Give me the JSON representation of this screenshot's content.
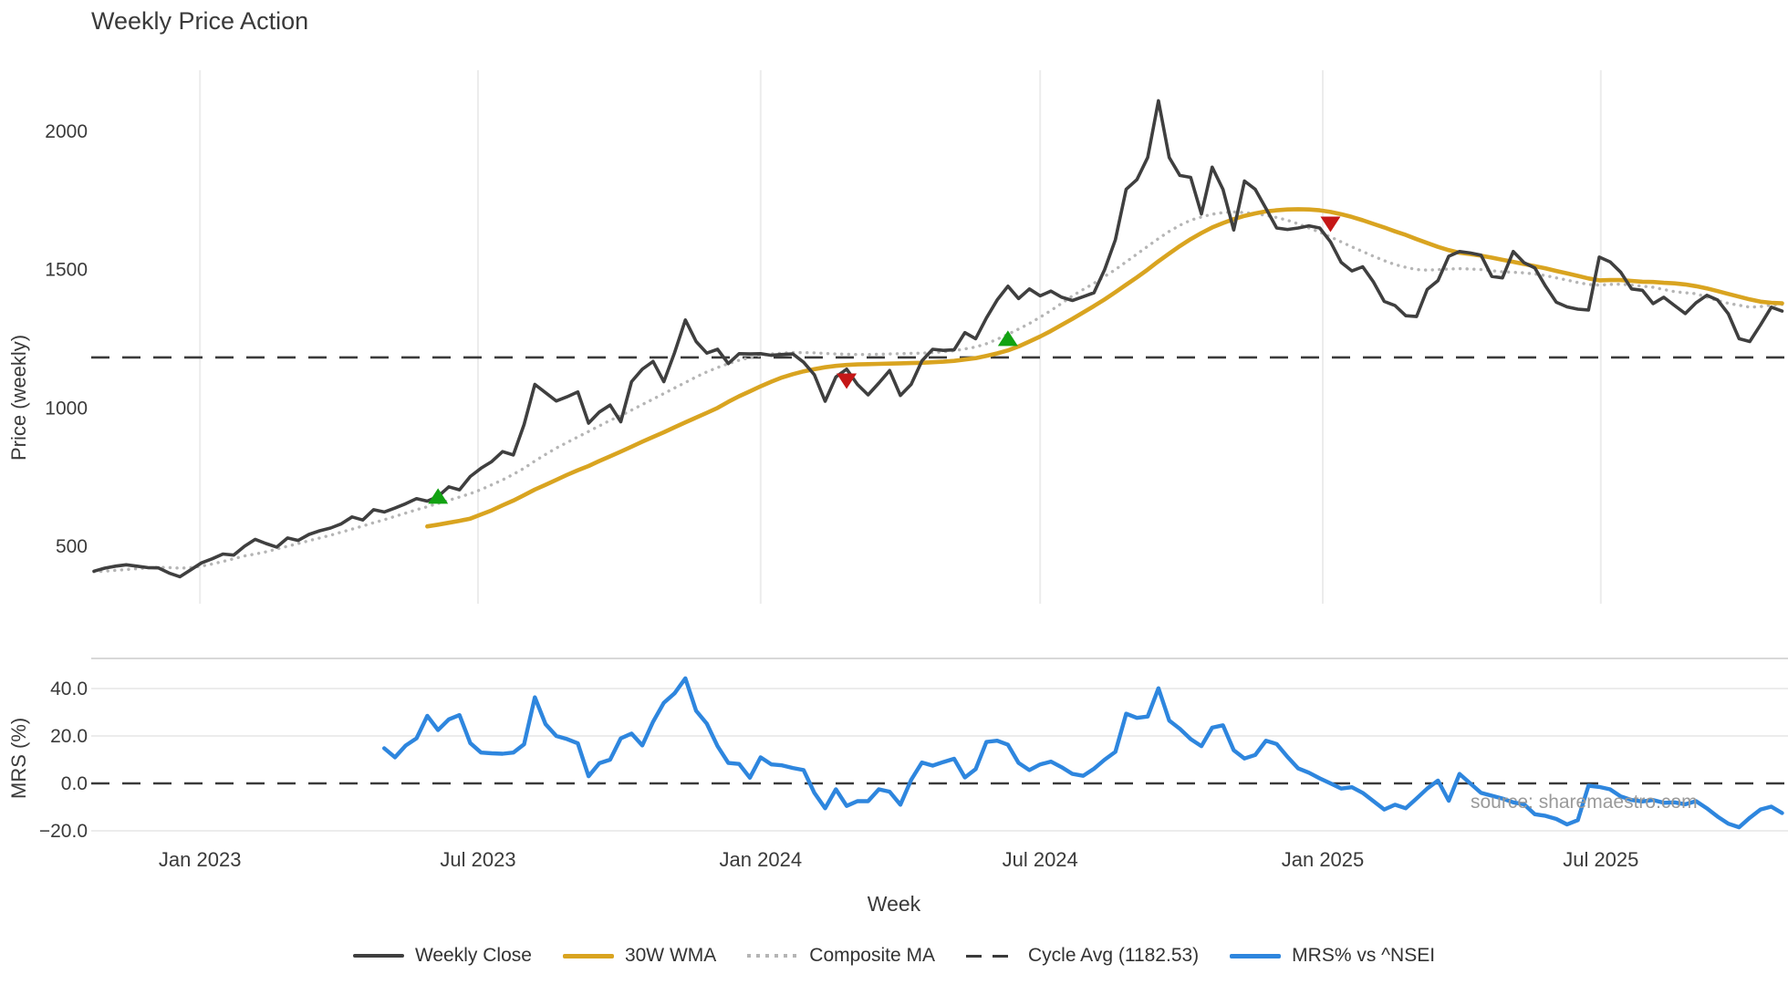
{
  "chart_data": {
    "type": "line",
    "title": "Weekly Price Action",
    "xlabel": "Week",
    "ylabel_price": "Price (weekly)",
    "ylabel_mrs": "MRS (%)",
    "watermark": "source: sharemaestro.com",
    "start_date": "2022-10-24",
    "interval": "weekly",
    "price_axis": {
      "ticks": [
        500,
        1000,
        1500,
        2000
      ],
      "tick_labels": [
        "500",
        "1000",
        "1500",
        "2000"
      ],
      "ylim": [
        290,
        2215
      ],
      "grid": "vertical-only"
    },
    "mrs_axis": {
      "ticks": [
        -20,
        0,
        20,
        40
      ],
      "tick_labels": [
        "−20.0",
        "0.0",
        "20.0",
        "40.0"
      ],
      "ylim": [
        -27.5,
        52.5
      ],
      "grid": "horizontal-only"
    },
    "x_ticks": [
      {
        "date": "2023-01-01",
        "label": "Jan 2023"
      },
      {
        "date": "2023-07-01",
        "label": "Jul 2023"
      },
      {
        "date": "2024-01-01",
        "label": "Jan 2024"
      },
      {
        "date": "2024-07-01",
        "label": "Jul 2024"
      },
      {
        "date": "2025-01-01",
        "label": "Jan 2025"
      },
      {
        "date": "2025-07-01",
        "label": "Jul 2025"
      }
    ],
    "cycle_avg": 1182.53,
    "series": [
      {
        "name": "Weekly Close",
        "axis": "price",
        "start_index": 0,
        "values": [
          410,
          421,
          428,
          433,
          428,
          423,
          422,
          403,
          390,
          415,
          440,
          455,
          472,
          468,
          500,
          525,
          510,
          497,
          530,
          521,
          543,
          556,
          566,
          581,
          606,
          595,
          632,
          624,
          638,
          654,
          672,
          663,
          680,
          715,
          704,
          752,
          782,
          806,
          842,
          830,
          940,
          1085,
          1055,
          1025,
          1040,
          1058,
          945,
          985,
          1010,
          950,
          1095,
          1140,
          1168,
          1095,
          1200,
          1318,
          1240,
          1198,
          1212,
          1160,
          1196,
          1195,
          1196,
          1190,
          1193,
          1195,
          1165,
          1120,
          1024,
          1112,
          1140,
          1085,
          1047,
          1090,
          1135,
          1045,
          1085,
          1170,
          1212,
          1208,
          1210,
          1272,
          1250,
          1325,
          1390,
          1440,
          1395,
          1430,
          1405,
          1422,
          1400,
          1388,
          1402,
          1416,
          1500,
          1608,
          1790,
          1825,
          1905,
          2110,
          1905,
          1840,
          1833,
          1701,
          1870,
          1790,
          1643,
          1820,
          1790,
          1721,
          1650,
          1645,
          1650,
          1658,
          1650,
          1600,
          1526,
          1495,
          1510,
          1455,
          1385,
          1370,
          1333,
          1330,
          1428,
          1460,
          1548,
          1565,
          1560,
          1552,
          1475,
          1470,
          1565,
          1525,
          1506,
          1440,
          1382,
          1365,
          1357,
          1354,
          1545,
          1528,
          1490,
          1430,
          1425,
          1377,
          1400,
          1370,
          1341,
          1380,
          1407,
          1390,
          1340,
          1250,
          1240,
          1300,
          1364,
          1350
        ]
      },
      {
        "name": "30W WMA",
        "axis": "price",
        "start_index": 31,
        "values": [
          572,
          578,
          585,
          592,
          600,
          615,
          630,
          648,
          665,
          685,
          705,
          722,
          740,
          758,
          775,
          790,
          808,
          825,
          842,
          860,
          878,
          895,
          912,
          930,
          948,
          965,
          982,
          1000,
          1022,
          1042,
          1060,
          1078,
          1095,
          1110,
          1122,
          1132,
          1140,
          1147,
          1152,
          1155,
          1157,
          1158,
          1159,
          1160,
          1161,
          1162,
          1163,
          1165,
          1167,
          1170,
          1175,
          1180,
          1188,
          1197,
          1208,
          1222,
          1240,
          1258,
          1278,
          1300,
          1322,
          1345,
          1368,
          1392,
          1418,
          1445,
          1472,
          1500,
          1530,
          1558,
          1585,
          1610,
          1632,
          1652,
          1668,
          1682,
          1694,
          1703,
          1710,
          1714,
          1717,
          1718,
          1717,
          1714,
          1708,
          1700,
          1690,
          1678,
          1665,
          1652,
          1638,
          1625,
          1610,
          1596,
          1582,
          1570,
          1561,
          1556,
          1550,
          1543,
          1535,
          1528,
          1520,
          1512,
          1504,
          1495,
          1486,
          1477,
          1468,
          1461,
          1462,
          1462,
          1459,
          1456,
          1455,
          1452,
          1450,
          1446,
          1440,
          1432,
          1422,
          1412,
          1402,
          1392,
          1384,
          1380,
          1378
        ]
      },
      {
        "name": "Composite MA",
        "axis": "price",
        "start_index": 0,
        "values": [
          408,
          410,
          413,
          416,
          419,
          422,
          424,
          423,
          421,
          423,
          428,
          436,
          445,
          455,
          465,
          472,
          480,
          490,
          500,
          510,
          520,
          530,
          540,
          551,
          562,
          573,
          585,
          596,
          608,
          620,
          632,
          643,
          655,
          666,
          678,
          690,
          705,
          722,
          740,
          760,
          782,
          808,
          832,
          855,
          875,
          895,
          915,
          935,
          955,
          972,
          992,
          1012,
          1032,
          1052,
          1072,
          1092,
          1112,
          1130,
          1146,
          1160,
          1172,
          1182,
          1190,
          1195,
          1198,
          1200,
          1200,
          1199,
          1197,
          1195,
          1194,
          1193,
          1193,
          1194,
          1195,
          1196,
          1197,
          1198,
          1200,
          1203,
          1207,
          1213,
          1220,
          1232,
          1248,
          1266,
          1285,
          1305,
          1328,
          1352,
          1378,
          1405,
          1428,
          1450,
          1475,
          1500,
          1528,
          1556,
          1584,
          1612,
          1638,
          1660,
          1678,
          1690,
          1700,
          1706,
          1708,
          1706,
          1702,
          1696,
          1688,
          1678,
          1665,
          1650,
          1635,
          1618,
          1600,
          1582,
          1565,
          1548,
          1532,
          1518,
          1508,
          1500,
          1498,
          1500,
          1502,
          1503,
          1502,
          1500,
          1496,
          1492,
          1490,
          1488,
          1484,
          1478,
          1470,
          1462,
          1453,
          1446,
          1444,
          1446,
          1447,
          1444,
          1440,
          1436,
          1428,
          1420,
          1416,
          1413,
          1400,
          1388,
          1378,
          1371,
          1364,
          1366,
          1372,
          1374
        ]
      },
      {
        "name": "MRS% vs ^NSEI",
        "axis": "mrs",
        "start_index": 27,
        "values": [
          14.8,
          11,
          16,
          19,
          28.5,
          22.5,
          27,
          28.8,
          17,
          13,
          12.7,
          12.5,
          13,
          16.5,
          36.3,
          25,
          20,
          18.7,
          16.9,
          3,
          8.5,
          10,
          19,
          21,
          16,
          26,
          34,
          38,
          44.3,
          30.6,
          25.2,
          15.7,
          8.6,
          8.2,
          2.4,
          11,
          8,
          7.6,
          6.5,
          5.6,
          -4,
          -10.5,
          -2.5,
          -9.5,
          -7.5,
          -7.5,
          -2.5,
          -3.5,
          -9,
          1.5,
          8.8,
          7.5,
          9,
          10.4,
          2.5,
          6,
          17.5,
          18,
          16.3,
          8.6,
          5.6,
          8,
          9.2,
          6.8,
          4,
          3.2,
          6.2,
          10,
          13.3,
          29.4,
          27.6,
          28.2,
          40.1,
          26.5,
          23,
          18.7,
          15.7,
          23.5,
          24.5,
          14,
          10.5,
          12,
          18,
          16.6,
          11.2,
          6.3,
          4.5,
          2.1,
          0,
          -2.2,
          -1.6,
          -4,
          -7.5,
          -11,
          -9,
          -10.5,
          -6.4,
          -2.2,
          1.2,
          -7.3,
          4,
          0,
          -4,
          -5.2,
          -6.4,
          -8,
          -8.8,
          -13,
          -13.7,
          -15,
          -17.3,
          -15.5,
          -1,
          -1.5,
          -2.5,
          -5.5,
          -7,
          -7.6,
          -7,
          -8.2,
          -8,
          -8.8,
          -7.5,
          -10.5,
          -14,
          -17,
          -18.5,
          -14.5,
          -11,
          -9.8,
          -12.5
        ]
      }
    ],
    "markers": {
      "buy": [
        {
          "date": "2023-06-05",
          "price": 680
        },
        {
          "date": "2024-06-10",
          "price": 1250
        }
      ],
      "sell": [
        {
          "date": "2024-02-26",
          "price": 1098
        },
        {
          "date": "2025-01-06",
          "price": 1665
        }
      ]
    },
    "legend": [
      {
        "label": "Weekly Close",
        "swatch": "solid-dark"
      },
      {
        "label": "30W WMA",
        "swatch": "solid-gold"
      },
      {
        "label": "Composite MA",
        "swatch": "dotted-gray"
      },
      {
        "label": "Cycle Avg (1182.53)",
        "swatch": "dashed-dark"
      },
      {
        "label": "MRS% vs ^NSEI",
        "swatch": "solid-blue"
      }
    ],
    "colors": {
      "close": "#3f3f3f",
      "wma30": "#d9a420",
      "composite": "#b5b5b5",
      "cycle_avg": "#3a3a3a",
      "mrs": "#2e86de",
      "buy_marker": "#12a212",
      "sell_marker": "#c51717",
      "gridline": "#ececec",
      "panel_border": "#cccccc",
      "tick_text": "#3a3a3a",
      "watermark_text": "#9a9a9a"
    }
  }
}
